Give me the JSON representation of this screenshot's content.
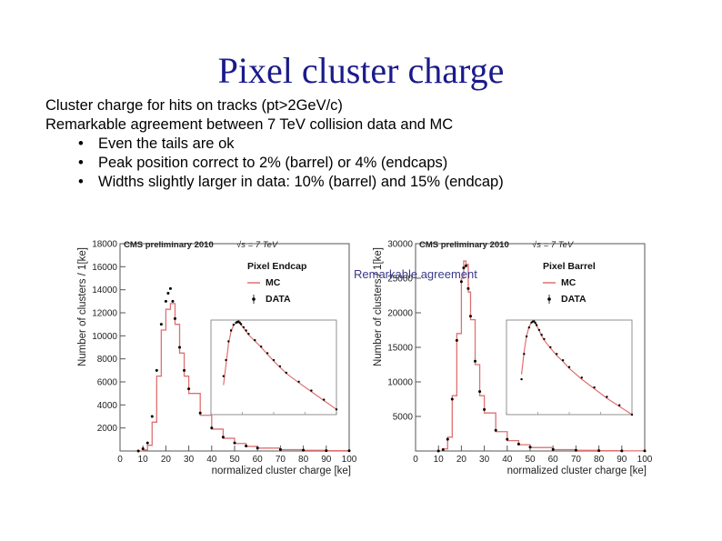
{
  "slide": {
    "title": "Pixel cluster charge",
    "bullets": [
      {
        "level": 1,
        "text": "Cluster charge for hits on tracks (pt>2GeV/c)"
      },
      {
        "level": 1,
        "text": "Remarkable agreement between 7 TeV collision data and MC"
      },
      {
        "level": 2,
        "text": "Even the tails are ok"
      },
      {
        "level": 2,
        "text": "Peak position correct to 2% (barrel) or 4% (endcaps)"
      },
      {
        "level": 2,
        "text": "Widths slightly larger in data: 10% (barrel) and 15% (endcap)"
      }
    ],
    "annotation": "Remarkable agreement"
  },
  "colors": {
    "title": "#1a1a8c",
    "mc": "#e07070",
    "data": "#000000"
  },
  "chart_data": [
    {
      "type": "line",
      "header": "CMS preliminary 2010",
      "energy": "√s = 7 TeV",
      "panel_label": "Pixel Endcap",
      "legend": [
        "MC",
        "DATA"
      ],
      "xlabel": "normalized cluster charge [ke]",
      "ylabel": "Number of clusters / 1[ke]",
      "xlim": [
        0,
        100
      ],
      "ylim": [
        0,
        18000
      ],
      "xticks": [
        0,
        10,
        20,
        30,
        40,
        50,
        60,
        70,
        80,
        90,
        100
      ],
      "yticks": [
        2000,
        4000,
        6000,
        8000,
        10000,
        12000,
        14000,
        16000,
        18000
      ],
      "series": [
        {
          "name": "MC",
          "x": [
            8,
            10,
            12,
            14,
            16,
            18,
            20,
            22,
            24,
            26,
            28,
            30,
            35,
            40,
            45,
            50,
            55,
            60,
            70,
            80,
            90,
            100
          ],
          "values": [
            0,
            100,
            500,
            2500,
            6500,
            10500,
            12300,
            12800,
            11000,
            8500,
            6500,
            5000,
            3100,
            1900,
            1100,
            650,
            400,
            250,
            120,
            60,
            30,
            15
          ]
        },
        {
          "name": "DATA",
          "x": [
            8,
            10,
            12,
            14,
            16,
            18,
            20,
            21,
            22,
            23,
            24,
            26,
            28,
            30,
            35,
            40,
            45,
            50,
            55,
            60,
            70,
            80,
            90,
            100
          ],
          "values": [
            0,
            200,
            700,
            3000,
            7000,
            11000,
            13000,
            13700,
            14100,
            13000,
            11500,
            9000,
            7000,
            5400,
            3300,
            2000,
            1200,
            700,
            430,
            260,
            130,
            65,
            32,
            15
          ]
        }
      ]
    },
    {
      "type": "line",
      "header": "CMS preliminary 2010",
      "energy": "√s = 7 TeV",
      "panel_label": "Pixel Barrel",
      "legend": [
        "MC",
        "DATA"
      ],
      "xlabel": "normalized cluster charge [ke]",
      "ylabel": "Number of clusters / 1[ke]",
      "xlim": [
        0,
        100
      ],
      "ylim": [
        0,
        30000
      ],
      "xticks": [
        0,
        10,
        20,
        30,
        40,
        50,
        60,
        70,
        80,
        90,
        100
      ],
      "yticks": [
        5000,
        10000,
        15000,
        20000,
        25000,
        30000
      ],
      "series": [
        {
          "name": "MC",
          "x": [
            10,
            12,
            14,
            16,
            18,
            20,
            21,
            22,
            23,
            24,
            26,
            28,
            30,
            35,
            40,
            45,
            50,
            60,
            70,
            80,
            90,
            100
          ],
          "values": [
            0,
            300,
            2000,
            8000,
            17000,
            25000,
            27500,
            27000,
            23000,
            19000,
            12500,
            8000,
            5500,
            2800,
            1500,
            900,
            500,
            200,
            90,
            40,
            20,
            10
          ]
        },
        {
          "name": "DATA",
          "x": [
            10,
            12,
            14,
            16,
            18,
            20,
            21,
            22,
            23,
            24,
            26,
            28,
            30,
            35,
            40,
            45,
            50,
            60,
            70,
            80,
            90,
            100
          ],
          "values": [
            0,
            200,
            1700,
            7500,
            16000,
            24500,
            26500,
            26800,
            23500,
            19500,
            13000,
            8600,
            6000,
            3000,
            1700,
            1000,
            560,
            230,
            100,
            45,
            22,
            10
          ]
        }
      ]
    }
  ]
}
